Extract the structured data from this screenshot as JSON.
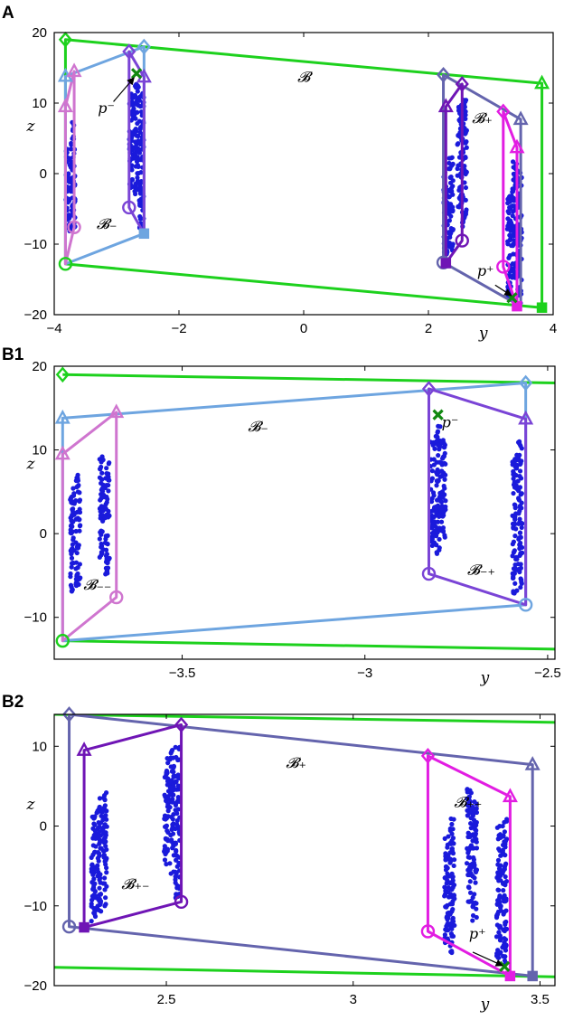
{
  "chart_data": [
    {
      "id": "A",
      "type": "scatter",
      "panel_label": "A",
      "xlabel": "y",
      "ylabel": "z",
      "xlim": [
        -4,
        4
      ],
      "ylim": [
        -20,
        20
      ],
      "xticks": [
        -4,
        -2,
        0,
        2,
        4
      ],
      "yticks": [
        -20,
        -10,
        0,
        10,
        20
      ],
      "point_clusters": [
        {
          "x": -3.78,
          "ymin": -8.5,
          "ymax": 3.5
        },
        {
          "x": -3.7,
          "ymin": -8.0,
          "ymax": 7.5
        },
        {
          "x": -2.76,
          "ymin": -2.0,
          "ymax": 12.0
        },
        {
          "x": -2.68,
          "ymin": -3.0,
          "ymax": 13.0
        },
        {
          "x": -2.6,
          "ymin": -8.0,
          "ymax": 11.5
        },
        {
          "x": 2.28,
          "ymin": -12.0,
          "ymax": 0.5
        },
        {
          "x": 2.36,
          "ymin": -11.0,
          "ymax": 2.5
        },
        {
          "x": 2.5,
          "ymin": -5.0,
          "ymax": 10.0
        },
        {
          "x": 2.58,
          "ymin": -8.0,
          "ymax": 11.0
        },
        {
          "x": 3.3,
          "ymin": -17.5,
          "ymax": -3.0
        },
        {
          "x": 3.38,
          "ymin": -15.0,
          "ymax": 2.0
        },
        {
          "x": 3.46,
          "ymin": -18.5,
          "ymax": 0.5
        }
      ],
      "hulls": [
        {
          "color": "#1dd11d",
          "points": [
            [
              -3.82,
              19.0
            ],
            [
              -3.82,
              -12.8
            ],
            [
              3.82,
              -19.0
            ],
            [
              3.82,
              12.8
            ]
          ]
        },
        {
          "color": "#6ea5e0",
          "points": [
            [
              -3.82,
              13.8
            ],
            [
              -2.56,
              18.0
            ],
            [
              -2.56,
              -8.5
            ],
            [
              -3.82,
              -12.8
            ]
          ]
        },
        {
          "color": "#cf75cf",
          "points": [
            [
              -3.82,
              9.5
            ],
            [
              -3.68,
              14.5
            ],
            [
              -3.68,
              -7.6
            ],
            [
              -3.82,
              -12.8
            ]
          ]
        },
        {
          "color": "#7a44d6",
          "points": [
            [
              -2.8,
              17.3
            ],
            [
              -2.56,
              13.7
            ],
            [
              -2.56,
              -8.5
            ],
            [
              -2.8,
              -4.8
            ]
          ]
        },
        {
          "color": "#6464ad",
          "points": [
            [
              2.24,
              14.0
            ],
            [
              3.48,
              7.7
            ],
            [
              3.48,
              -18.8
            ],
            [
              2.24,
              -12.6
            ]
          ]
        },
        {
          "color": "#6f15b5",
          "points": [
            [
              2.28,
              9.5
            ],
            [
              2.54,
              12.7
            ],
            [
              2.54,
              -9.5
            ],
            [
              2.28,
              -12.7
            ]
          ]
        },
        {
          "color": "#e21de2",
          "points": [
            [
              3.2,
              8.8
            ],
            [
              3.42,
              3.7
            ],
            [
              3.42,
              -18.8
            ],
            [
              3.2,
              -13.2
            ]
          ]
        }
      ],
      "markers": [
        {
          "shape": "diamond",
          "color": "#1dd11d",
          "x": -3.82,
          "y": 19.0
        },
        {
          "shape": "circle",
          "color": "#1dd11d",
          "x": -3.82,
          "y": -12.8
        },
        {
          "shape": "square",
          "color": "#1dd11d",
          "x": 3.82,
          "y": -19.0
        },
        {
          "shape": "triangle",
          "color": "#1dd11d",
          "x": 3.82,
          "y": 12.8
        },
        {
          "shape": "triangle",
          "color": "#6ea5e0",
          "x": -3.82,
          "y": 13.8
        },
        {
          "shape": "diamond",
          "color": "#6ea5e0",
          "x": -2.56,
          "y": 18.0
        },
        {
          "shape": "square",
          "color": "#6ea5e0",
          "x": -2.56,
          "y": -8.5
        },
        {
          "shape": "triangle",
          "color": "#cf75cf",
          "x": -3.82,
          "y": 9.5
        },
        {
          "shape": "triangle",
          "color": "#cf75cf",
          "x": -3.68,
          "y": 14.5
        },
        {
          "shape": "circle",
          "color": "#cf75cf",
          "x": -3.68,
          "y": -7.6
        },
        {
          "shape": "diamond",
          "color": "#7a44d6",
          "x": -2.8,
          "y": 17.3
        },
        {
          "shape": "triangle",
          "color": "#7a44d6",
          "x": -2.56,
          "y": 13.7
        },
        {
          "shape": "circle",
          "color": "#7a44d6",
          "x": -2.8,
          "y": -4.8
        },
        {
          "shape": "diamond",
          "color": "#6464ad",
          "x": 2.24,
          "y": 14.0
        },
        {
          "shape": "triangle",
          "color": "#6464ad",
          "x": 3.48,
          "y": 7.7
        },
        {
          "shape": "circle",
          "color": "#6464ad",
          "x": 2.24,
          "y": -12.6
        },
        {
          "shape": "triangle",
          "color": "#6f15b5",
          "x": 2.28,
          "y": 9.5
        },
        {
          "shape": "diamond",
          "color": "#6f15b5",
          "x": 2.54,
          "y": 12.7
        },
        {
          "shape": "circle",
          "color": "#6f15b5",
          "x": 2.54,
          "y": -9.5
        },
        {
          "shape": "square",
          "color": "#6f15b5",
          "x": 2.28,
          "y": -12.7
        },
        {
          "shape": "diamond",
          "color": "#e21de2",
          "x": 3.2,
          "y": 8.8
        },
        {
          "shape": "triangle",
          "color": "#e21de2",
          "x": 3.42,
          "y": 3.7
        },
        {
          "shape": "circle",
          "color": "#e21de2",
          "x": 3.2,
          "y": -13.2
        },
        {
          "shape": "square",
          "color": "#e21de2",
          "x": 3.42,
          "y": -18.8
        },
        {
          "shape": "cross",
          "color": "#118811",
          "x": -2.68,
          "y": 14.2
        },
        {
          "shape": "cross",
          "color": "#118811",
          "x": 3.34,
          "y": -17.6
        }
      ],
      "annotations": [
        {
          "text": "𝓑",
          "x": -0.1,
          "y": 13.0
        },
        {
          "text": "𝓑₋",
          "x": -3.32,
          "y": -7.8
        },
        {
          "text": "𝓑₊",
          "x": 2.7,
          "y": 7.2
        },
        {
          "text": "p⁻",
          "x": -3.3,
          "y": 8.6
        },
        {
          "text": "p⁺",
          "x": 2.78,
          "y": -14.5
        }
      ],
      "arrows": [
        {
          "from": [
            -3.05,
            10.2
          ],
          "to": [
            -2.72,
            13.6
          ]
        },
        {
          "from": [
            3.07,
            -15.8
          ],
          "to": [
            3.33,
            -17.3
          ]
        }
      ]
    },
    {
      "id": "B1",
      "type": "scatter",
      "panel_label": "B1",
      "xlabel": "y",
      "ylabel": "z",
      "xlim": [
        -3.85,
        -2.48
      ],
      "ylim": [
        -15,
        20
      ],
      "xticks": [
        -3.5,
        -3,
        -2.5
      ],
      "yticks": [
        -10,
        0,
        10,
        20
      ],
      "point_clusters": [
        {
          "x": -3.8,
          "ymin": -7.5,
          "ymax": 5.5
        },
        {
          "x": -3.785,
          "ymin": -6.5,
          "ymax": 7.0
        },
        {
          "x": -3.72,
          "ymin": -3.0,
          "ymax": 9.5
        },
        {
          "x": -3.705,
          "ymin": -5.0,
          "ymax": 8.5
        },
        {
          "x": -2.815,
          "ymin": -1.5,
          "ymax": 11.0
        },
        {
          "x": -2.8,
          "ymin": -2.5,
          "ymax": 13.0
        },
        {
          "x": -2.785,
          "ymin": -1.0,
          "ymax": 12.0
        },
        {
          "x": -2.59,
          "ymin": -7.5,
          "ymax": 10.0
        },
        {
          "x": -2.575,
          "ymin": -6.5,
          "ymax": 11.0
        }
      ],
      "hulls": [
        {
          "color": "#1dd11d",
          "points": [
            [
              -3.827,
              19.0
            ],
            [
              -2.48,
              18.0
            ]
          ]
        },
        {
          "color": "#1dd11d",
          "points": [
            [
              -3.827,
              -12.8
            ],
            [
              -2.48,
              -13.8
            ]
          ]
        },
        {
          "color": "#6ea5e0",
          "points": [
            [
              -3.827,
              13.8
            ],
            [
              -2.56,
              18.0
            ],
            [
              -2.56,
              -8.5
            ],
            [
              -3.827,
              -12.8
            ]
          ]
        },
        {
          "color": "#cf75cf",
          "points": [
            [
              -3.827,
              9.5
            ],
            [
              -3.68,
              14.5
            ],
            [
              -3.68,
              -7.6
            ],
            [
              -3.827,
              -12.8
            ]
          ]
        },
        {
          "color": "#7a44d6",
          "points": [
            [
              -2.825,
              17.3
            ],
            [
              -2.56,
              13.7
            ],
            [
              -2.56,
              -8.5
            ],
            [
              -2.825,
              -4.8
            ]
          ]
        }
      ],
      "markers": [
        {
          "shape": "diamond",
          "color": "#1dd11d",
          "x": -3.827,
          "y": 19.0
        },
        {
          "shape": "circle",
          "color": "#1dd11d",
          "x": -3.827,
          "y": -12.8
        },
        {
          "shape": "triangle",
          "color": "#6ea5e0",
          "x": -3.827,
          "y": 13.8
        },
        {
          "shape": "diamond",
          "color": "#6ea5e0",
          "x": -2.56,
          "y": 18.0
        },
        {
          "shape": "circle",
          "color": "#6ea5e0",
          "x": -2.56,
          "y": -8.5
        },
        {
          "shape": "triangle",
          "color": "#cf75cf",
          "x": -3.827,
          "y": 9.5
        },
        {
          "shape": "triangle",
          "color": "#cf75cf",
          "x": -3.68,
          "y": 14.5
        },
        {
          "shape": "circle",
          "color": "#cf75cf",
          "x": -3.68,
          "y": -7.6
        },
        {
          "shape": "diamond",
          "color": "#7a44d6",
          "x": -2.825,
          "y": 17.3
        },
        {
          "shape": "triangle",
          "color": "#7a44d6",
          "x": -2.56,
          "y": 13.7
        },
        {
          "shape": "circle",
          "color": "#7a44d6",
          "x": -2.825,
          "y": -4.8
        },
        {
          "shape": "cross",
          "color": "#118811",
          "x": -2.8,
          "y": 14.2
        }
      ],
      "annotations": [
        {
          "text": "𝓑₋",
          "x": -3.32,
          "y": 12.2
        },
        {
          "text": "𝓑₋₋",
          "x": -3.77,
          "y": -6.7
        },
        {
          "text": "𝓑₋₊",
          "x": -2.72,
          "y": -4.9
        },
        {
          "text": "p⁻",
          "x": -2.79,
          "y": 12.7
        }
      ],
      "arrows": []
    },
    {
      "id": "B2",
      "type": "scatter",
      "panel_label": "B2",
      "xlabel": "y",
      "ylabel": "z",
      "xlim": [
        2.2,
        3.54
      ],
      "ylim": [
        -20,
        14
      ],
      "xticks": [
        2.5,
        3,
        3.5
      ],
      "yticks": [
        -20,
        -10,
        0,
        10
      ],
      "point_clusters": [
        {
          "x": 2.305,
          "ymin": -12.0,
          "ymax": 2.0
        },
        {
          "x": 2.32,
          "ymin": -11.0,
          "ymax": 3.5
        },
        {
          "x": 2.335,
          "ymin": -10.0,
          "ymax": 5.0
        },
        {
          "x": 2.5,
          "ymin": -5.0,
          "ymax": 9.0
        },
        {
          "x": 2.515,
          "ymin": -6.0,
          "ymax": 10.0
        },
        {
          "x": 2.53,
          "ymin": -9.0,
          "ymax": 10.0
        },
        {
          "x": 3.25,
          "ymin": -15.0,
          "ymax": -1.0
        },
        {
          "x": 3.265,
          "ymin": -16.0,
          "ymax": 1.0
        },
        {
          "x": 3.31,
          "ymin": -10.0,
          "ymax": 5.0
        },
        {
          "x": 3.325,
          "ymin": -12.0,
          "ymax": 3.5
        },
        {
          "x": 3.39,
          "ymin": -17.0,
          "ymax": 0.0
        },
        {
          "x": 3.405,
          "ymin": -18.0,
          "ymax": 1.0
        }
      ],
      "hulls": [
        {
          "color": "#1dd11d",
          "points": [
            [
              2.2,
              14.0
            ],
            [
              3.54,
              13.0
            ]
          ]
        },
        {
          "color": "#1dd11d",
          "points": [
            [
              2.2,
              -17.7
            ],
            [
              3.54,
              -18.9
            ]
          ]
        },
        {
          "color": "#6464ad",
          "points": [
            [
              2.24,
              14.0
            ],
            [
              3.48,
              7.7
            ],
            [
              3.48,
              -18.8
            ],
            [
              2.24,
              -12.6
            ]
          ]
        },
        {
          "color": "#6f15b5",
          "points": [
            [
              2.28,
              9.5
            ],
            [
              2.54,
              12.7
            ],
            [
              2.54,
              -9.5
            ],
            [
              2.28,
              -12.7
            ]
          ]
        },
        {
          "color": "#e21de2",
          "points": [
            [
              3.2,
              8.8
            ],
            [
              3.42,
              3.7
            ],
            [
              3.42,
              -18.8
            ],
            [
              3.2,
              -13.2
            ]
          ]
        }
      ],
      "markers": [
        {
          "shape": "diamond",
          "color": "#6464ad",
          "x": 2.24,
          "y": 14.0
        },
        {
          "shape": "triangle",
          "color": "#6464ad",
          "x": 3.48,
          "y": 7.7
        },
        {
          "shape": "circle",
          "color": "#6464ad",
          "x": 2.24,
          "y": -12.6
        },
        {
          "shape": "square",
          "color": "#6464ad",
          "x": 3.48,
          "y": -18.8
        },
        {
          "shape": "triangle",
          "color": "#6f15b5",
          "x": 2.28,
          "y": 9.5
        },
        {
          "shape": "diamond",
          "color": "#6f15b5",
          "x": 2.54,
          "y": 12.7
        },
        {
          "shape": "circle",
          "color": "#6f15b5",
          "x": 2.54,
          "y": -9.5
        },
        {
          "shape": "square",
          "color": "#6f15b5",
          "x": 2.28,
          "y": -12.7
        },
        {
          "shape": "diamond",
          "color": "#e21de2",
          "x": 3.2,
          "y": 8.8
        },
        {
          "shape": "triangle",
          "color": "#e21de2",
          "x": 3.42,
          "y": 3.7
        },
        {
          "shape": "circle",
          "color": "#e21de2",
          "x": 3.2,
          "y": -13.2
        },
        {
          "shape": "square",
          "color": "#e21de2",
          "x": 3.42,
          "y": -18.8
        },
        {
          "shape": "cross",
          "color": "#118811",
          "x": 3.405,
          "y": -17.6
        }
      ],
      "annotations": [
        {
          "text": "𝓑₊",
          "x": 2.82,
          "y": 7.3
        },
        {
          "text": "𝓑₊₊",
          "x": 3.27,
          "y": 2.4
        },
        {
          "text": "𝓑₊₋",
          "x": 2.38,
          "y": -7.9
        },
        {
          "text": "p⁺",
          "x": 3.31,
          "y": -14.1
        }
      ],
      "arrows": [
        {
          "from": [
            3.32,
            -15.8
          ],
          "to": [
            3.4,
            -17.5
          ]
        }
      ]
    }
  ]
}
